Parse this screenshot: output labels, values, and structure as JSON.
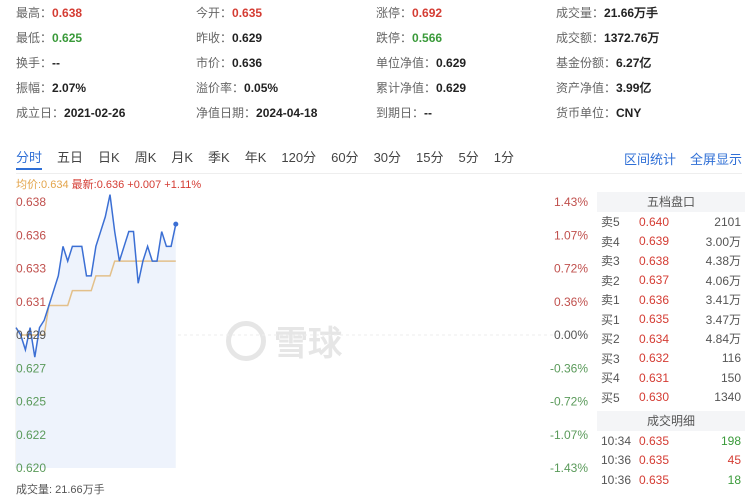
{
  "info": [
    [
      {
        "label": "最高：",
        "value": "0.638",
        "color": "red"
      },
      {
        "label": "今开：",
        "value": "0.635",
        "color": "red"
      },
      {
        "label": "涨停：",
        "value": "0.692",
        "color": "red"
      },
      {
        "label": "成交量：",
        "value": "21.66万手"
      }
    ],
    [
      {
        "label": "最低：",
        "value": "0.625",
        "color": "green"
      },
      {
        "label": "昨收：",
        "value": "0.629"
      },
      {
        "label": "跌停：",
        "value": "0.566",
        "color": "green"
      },
      {
        "label": "成交额：",
        "value": "1372.76万"
      }
    ],
    [
      {
        "label": "换手：",
        "value": "--"
      },
      {
        "label": "市价：",
        "value": "0.636"
      },
      {
        "label": "单位净值：",
        "value": "0.629"
      },
      {
        "label": "基金份额：",
        "value": "6.27亿"
      }
    ],
    [
      {
        "label": "振幅：",
        "value": "2.07%"
      },
      {
        "label": "溢价率：",
        "value": "0.05%"
      },
      {
        "label": "累计净值：",
        "value": "0.629"
      },
      {
        "label": "资产净值：",
        "value": "3.99亿"
      }
    ],
    [
      {
        "label": "成立日：",
        "value": "2021-02-26"
      },
      {
        "label": "净值日期：",
        "value": "2024-04-18"
      },
      {
        "label": "到期日：",
        "value": "--"
      },
      {
        "label": "货币单位：",
        "value": "CNY"
      }
    ]
  ],
  "tabs": [
    "分时",
    "五日",
    "日K",
    "周K",
    "月K",
    "季K",
    "年K",
    "120分",
    "60分",
    "30分",
    "15分",
    "5分",
    "1分"
  ],
  "active_tab": "分时",
  "tab_links": [
    "区间统计",
    "全屏显示"
  ],
  "legend": {
    "avg": "均价:0.634",
    "last": "最新:0.636 +0.007 +1.11%"
  },
  "watermark": "雪球",
  "volume_label": "成交量: 21.66万手",
  "colors": {
    "up": "#d43c33",
    "down": "#3a9a3a",
    "price_line": "#3b6fd4",
    "avg_line": "#e3c08a",
    "accent": "#2f6fd6"
  },
  "chart_data": {
    "type": "line",
    "ylim": [
      0.62,
      0.638
    ],
    "y_ticks": [
      "0.638",
      "0.636",
      "0.633",
      "0.631",
      "0.629",
      "0.627",
      "0.625",
      "0.622",
      "0.620"
    ],
    "pct_ticks": [
      "1.43%",
      "1.07%",
      "0.72%",
      "0.36%",
      "0.00%",
      "-0.36%",
      "-0.72%",
      "-1.07%",
      "-1.43%"
    ],
    "prev_close": 0.629,
    "series": [
      {
        "values": [
          0.6295,
          0.629,
          0.628,
          0.6295,
          0.6275,
          0.6295,
          0.63,
          0.631,
          0.632,
          0.633,
          0.635,
          0.634,
          0.635,
          0.635,
          0.635,
          0.633,
          0.633,
          0.635,
          0.636,
          0.637,
          0.6385,
          0.636,
          0.634,
          0.635,
          0.636,
          0.636,
          0.6325,
          0.634,
          0.635,
          0.634,
          0.634,
          0.636,
          0.635,
          0.635,
          0.6365
        ]
      },
      {
        "values": [
          0.6295,
          0.629,
          0.629,
          0.629,
          0.629,
          0.629,
          0.629,
          0.631,
          0.631,
          0.631,
          0.631,
          0.631,
          0.632,
          0.632,
          0.632,
          0.632,
          0.632,
          0.633,
          0.633,
          0.633,
          0.633,
          0.634,
          0.634,
          0.634,
          0.634,
          0.634,
          0.634,
          0.634,
          0.634,
          0.634,
          0.634,
          0.634,
          0.634,
          0.634,
          0.634
        ]
      }
    ]
  },
  "order_book": {
    "title": "五档盘口",
    "rows": [
      [
        "卖5",
        "0.640",
        "2101"
      ],
      [
        "卖4",
        "0.639",
        "3.00万"
      ],
      [
        "卖3",
        "0.638",
        "4.38万"
      ],
      [
        "卖2",
        "0.637",
        "4.06万"
      ],
      [
        "卖1",
        "0.636",
        "3.41万"
      ],
      [
        "买1",
        "0.635",
        "3.47万"
      ],
      [
        "买2",
        "0.634",
        "4.84万"
      ],
      [
        "买3",
        "0.632",
        "116"
      ],
      [
        "买4",
        "0.631",
        "150"
      ],
      [
        "买5",
        "0.630",
        "1340"
      ]
    ],
    "trades_title": "成交明细",
    "trades": [
      [
        "10:34",
        "0.635",
        "198",
        "green"
      ],
      [
        "10:36",
        "0.635",
        "45",
        "red"
      ],
      [
        "10:36",
        "0.635",
        "18",
        "green"
      ]
    ]
  }
}
